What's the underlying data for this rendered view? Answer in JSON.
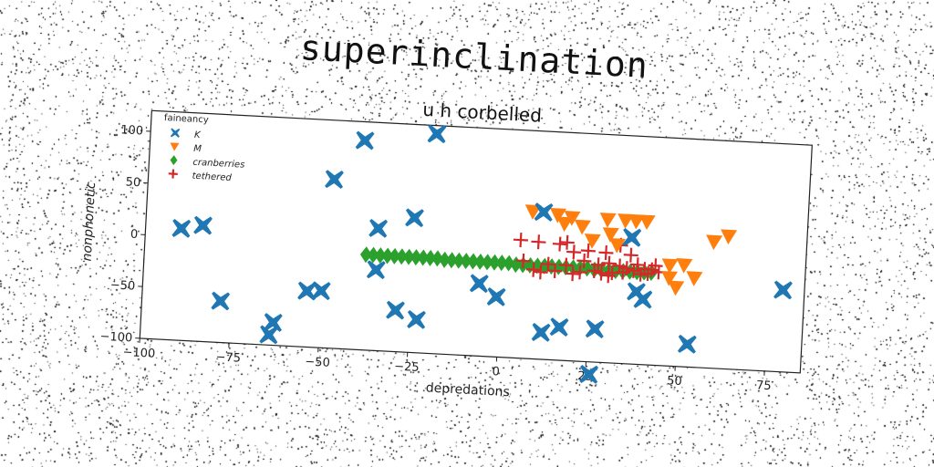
{
  "page_title": "superinclination",
  "chart_data": {
    "type": "scatter",
    "title": "u h corbelled",
    "xlabel": "depredations",
    "ylabel": "nonphonetic",
    "xlim": [
      -100,
      85
    ],
    "ylim": [
      -100,
      120
    ],
    "xticks": [
      -100,
      -75,
      -50,
      -25,
      0,
      25,
      50,
      75
    ],
    "yticks": [
      -100,
      -50,
      0,
      50,
      100
    ],
    "legend_title": "faineancy",
    "legend_position": "top-left",
    "grid": false,
    "series": [
      {
        "name": "K",
        "marker": "X",
        "color": "#1f77b4",
        "points": [
          [
            -90,
            8
          ],
          [
            -84,
            12
          ],
          [
            -78,
            -60
          ],
          [
            -63,
            -78
          ],
          [
            -64,
            -90
          ],
          [
            -54,
            -46
          ],
          [
            -50,
            -45
          ],
          [
            -48,
            63
          ],
          [
            -40,
            102
          ],
          [
            -35,
            18
          ],
          [
            -35,
            -22
          ],
          [
            -29,
            -60
          ],
          [
            -25,
            30
          ],
          [
            -23,
            -68
          ],
          [
            -20,
            112
          ],
          [
            -6,
            -30
          ],
          [
            -1,
            -42
          ],
          [
            11,
            42
          ],
          [
            12,
            -74
          ],
          [
            17,
            -68
          ],
          [
            26,
            -112
          ],
          [
            27,
            -68
          ],
          [
            36,
            22
          ],
          [
            38,
            -30
          ],
          [
            40,
            -37
          ],
          [
            53,
            -78
          ],
          [
            79,
            -21
          ]
        ]
      },
      {
        "name": "M",
        "marker": "v",
        "color": "#ff7f0e",
        "points": [
          [
            8,
            42
          ],
          [
            15,
            40
          ],
          [
            17,
            32
          ],
          [
            19,
            38
          ],
          [
            22,
            30
          ],
          [
            25,
            17
          ],
          [
            29,
            38
          ],
          [
            30,
            24
          ],
          [
            32,
            14
          ],
          [
            34,
            38
          ],
          [
            37,
            38
          ],
          [
            40,
            38
          ],
          [
            47,
            -15
          ],
          [
            47,
            -3
          ],
          [
            49,
            -24
          ],
          [
            51,
            -2
          ],
          [
            54,
            -14
          ],
          [
            59,
            22
          ],
          [
            63,
            28
          ]
        ]
      },
      {
        "name": "cranberries",
        "marker": "D",
        "color": "#2ca02c",
        "points": [
          [
            -38,
            -8
          ],
          [
            -36,
            -8
          ],
          [
            -34,
            -8
          ],
          [
            -32,
            -8
          ],
          [
            -30,
            -8
          ],
          [
            -28,
            -8
          ],
          [
            -26,
            -8
          ],
          [
            -24,
            -8
          ],
          [
            -22,
            -8
          ],
          [
            -20,
            -8
          ],
          [
            -18,
            -8
          ],
          [
            -16,
            -9
          ],
          [
            -14,
            -9
          ],
          [
            -12,
            -9
          ],
          [
            -10,
            -9
          ],
          [
            -8,
            -9
          ],
          [
            -6,
            -9
          ],
          [
            -4,
            -9
          ],
          [
            -2,
            -9
          ],
          [
            0,
            -9
          ],
          [
            2,
            -9
          ],
          [
            4,
            -10
          ],
          [
            6,
            -10
          ],
          [
            8,
            -10
          ],
          [
            10,
            -10
          ],
          [
            12,
            -10
          ],
          [
            14,
            -10
          ],
          [
            16,
            -10
          ],
          [
            18,
            -10
          ],
          [
            20,
            -10
          ],
          [
            22,
            -10
          ],
          [
            24,
            -10
          ],
          [
            26,
            -11
          ],
          [
            28,
            -11
          ],
          [
            30,
            -11
          ],
          [
            32,
            -11
          ],
          [
            34,
            -11
          ],
          [
            36,
            -11
          ],
          [
            38,
            -11
          ],
          [
            40,
            -11
          ],
          [
            42,
            -11
          ]
        ]
      },
      {
        "name": "tethered",
        "marker": "+",
        "color": "#d62728",
        "points": [
          [
            5,
            14
          ],
          [
            6,
            -6
          ],
          [
            9,
            -14
          ],
          [
            10,
            13
          ],
          [
            11,
            -16
          ],
          [
            13,
            -8
          ],
          [
            15,
            -14
          ],
          [
            16,
            12
          ],
          [
            18,
            14
          ],
          [
            18,
            -8
          ],
          [
            20,
            -16
          ],
          [
            20,
            5
          ],
          [
            22,
            -14
          ],
          [
            23,
            -3
          ],
          [
            24,
            7
          ],
          [
            26,
            -12
          ],
          [
            27,
            -6
          ],
          [
            28,
            -14
          ],
          [
            29,
            6
          ],
          [
            30,
            -16
          ],
          [
            30,
            -4
          ],
          [
            31,
            -13
          ],
          [
            33,
            14
          ],
          [
            33,
            -6
          ],
          [
            34,
            -12
          ],
          [
            35,
            -8
          ],
          [
            36,
            5
          ],
          [
            37,
            -10
          ],
          [
            38,
            -4
          ],
          [
            39,
            -13
          ],
          [
            40,
            -8
          ],
          [
            41,
            -12
          ],
          [
            42,
            -8
          ],
          [
            43,
            -4
          ],
          [
            44,
            -10
          ]
        ]
      }
    ]
  }
}
